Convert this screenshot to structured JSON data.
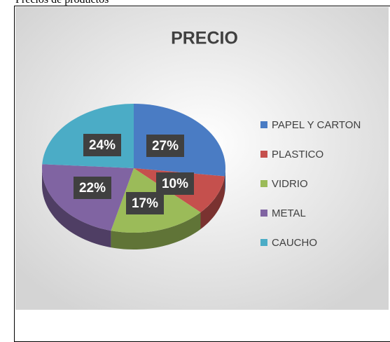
{
  "caption": "Precios de productos",
  "chart_data": {
    "type": "pie",
    "title": "PRECIO",
    "categories": [
      "PAPEL Y CARTON",
      "PLASTICO",
      "VIDRIO",
      "METAL",
      "CAUCHO"
    ],
    "values": [
      27,
      10,
      17,
      22,
      24
    ],
    "value_labels": [
      "27%",
      "10%",
      "17%",
      "22%",
      "24%"
    ],
    "colors": [
      "#4a7cc4",
      "#c5504d",
      "#9bbb59",
      "#8064a2",
      "#4bacc6"
    ],
    "legend": "right"
  }
}
